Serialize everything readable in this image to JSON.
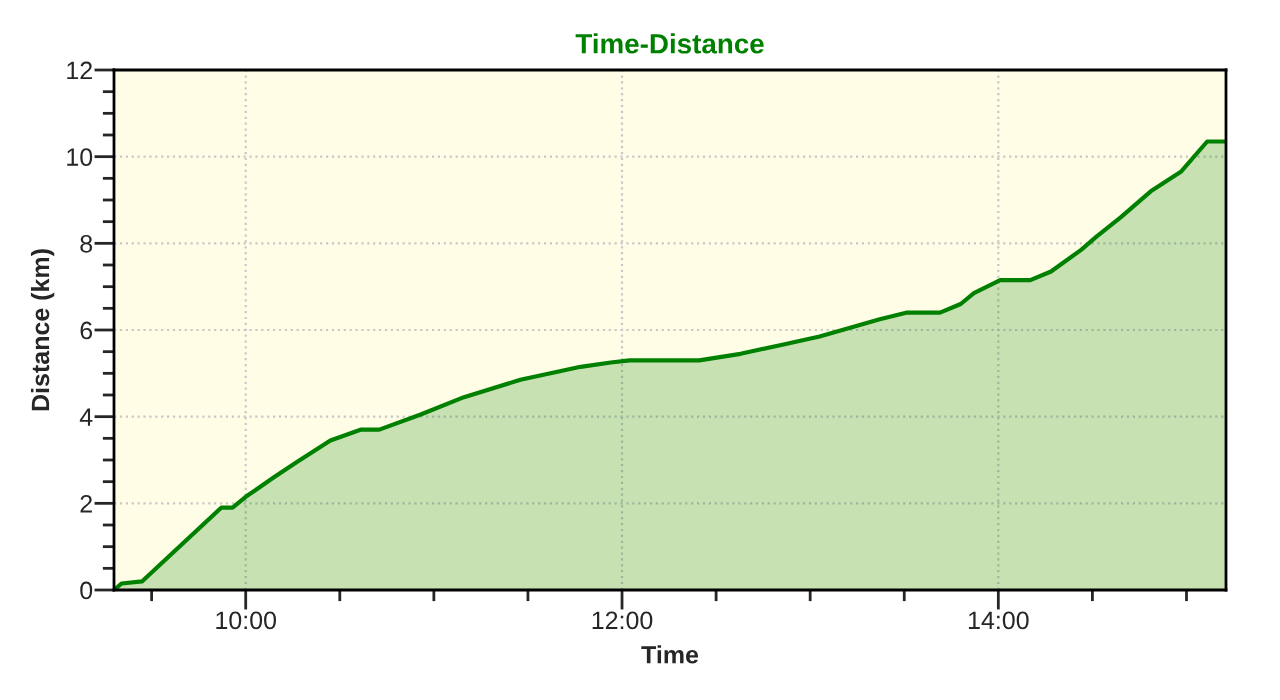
{
  "chart_data": {
    "type": "area",
    "title": "Time-Distance",
    "xlabel": "Time",
    "ylabel": "Distance (km)",
    "x": [
      9.3,
      9.34,
      9.45,
      9.87,
      9.93,
      10.0,
      10.15,
      10.27,
      10.45,
      10.61,
      10.71,
      10.93,
      11.16,
      11.46,
      11.78,
      11.94,
      12.04,
      12.41,
      12.63,
      12.84,
      13.05,
      13.37,
      13.51,
      13.69,
      13.8,
      13.87,
      14.01,
      14.17,
      14.28,
      14.44,
      14.52,
      14.65,
      14.81,
      14.97,
      15.11,
      15.21
    ],
    "series": [
      {
        "color": "#008000",
        "values": [
          0,
          0.15,
          0.2,
          1.9,
          1.9,
          2.15,
          2.6,
          2.95,
          3.45,
          3.7,
          3.7,
          4.05,
          4.45,
          4.85,
          5.15,
          5.25,
          5.3,
          5.3,
          5.45,
          5.65,
          5.85,
          6.25,
          6.4,
          6.4,
          6.6,
          6.85,
          7.15,
          7.15,
          7.35,
          7.85,
          8.15,
          8.6,
          9.2,
          9.65,
          10.35,
          10.35
        ]
      }
    ],
    "xlim": [
      9.3,
      15.21
    ],
    "ylim": [
      0,
      12
    ],
    "xticks": [
      {
        "value": 9.5,
        "label": null
      },
      {
        "value": 10,
        "label": "10:00"
      },
      {
        "value": 10.5,
        "label": null
      },
      {
        "value": 11,
        "label": null
      },
      {
        "value": 11.5,
        "label": null
      },
      {
        "value": 12,
        "label": "12:00"
      },
      {
        "value": 12.5,
        "label": null
      },
      {
        "value": 13,
        "label": null
      },
      {
        "value": 13.5,
        "label": null
      },
      {
        "value": 14,
        "label": "14:00"
      },
      {
        "value": 14.5,
        "label": null
      },
      {
        "value": 15,
        "label": null
      }
    ],
    "yticks": [
      0,
      {
        "value": 0.5,
        "label": null
      },
      {
        "value": 1,
        "label": null
      },
      {
        "value": 1.5,
        "label": null
      },
      2,
      {
        "value": 2.5,
        "label": null
      },
      {
        "value": 3,
        "label": null
      },
      {
        "value": 3.5,
        "label": null
      },
      4,
      {
        "value": 4.5,
        "label": null
      },
      {
        "value": 5,
        "label": null
      },
      {
        "value": 5.5,
        "label": null
      },
      6,
      {
        "value": 6.5,
        "label": null
      },
      {
        "value": 7,
        "label": null
      },
      {
        "value": 7.5,
        "label": null
      },
      8,
      {
        "value": 8.5,
        "label": null
      },
      {
        "value": 9,
        "label": null
      },
      {
        "value": 9.5,
        "label": null
      },
      10,
      {
        "value": 10.5,
        "label": null
      },
      {
        "value": 11,
        "label": null
      },
      {
        "value": 11.5,
        "label": null
      },
      12
    ],
    "grid": true,
    "legend": false,
    "marker": "none",
    "line_style": "solid"
  }
}
